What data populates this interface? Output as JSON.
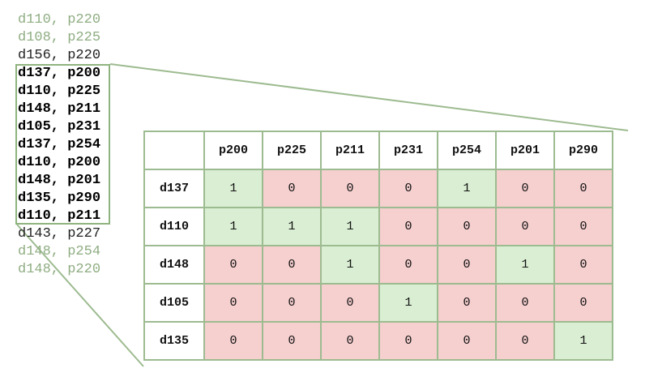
{
  "pairs_list": [
    {
      "text": "d110, p220",
      "style": "faded"
    },
    {
      "text": "d108, p225",
      "style": "faded"
    },
    {
      "text": "d156, p220",
      "style": "plain"
    },
    {
      "text": "d137, p200",
      "style": "highlight"
    },
    {
      "text": "d110, p225",
      "style": "highlight"
    },
    {
      "text": "d148, p211",
      "style": "highlight"
    },
    {
      "text": "d105, p231",
      "style": "highlight"
    },
    {
      "text": "d137, p254",
      "style": "highlight"
    },
    {
      "text": "d110, p200",
      "style": "highlight"
    },
    {
      "text": "d148, p201",
      "style": "highlight"
    },
    {
      "text": "d135, p290",
      "style": "highlight"
    },
    {
      "text": "d110, p211",
      "style": "highlight"
    },
    {
      "text": "d143, p227",
      "style": "plain"
    },
    {
      "text": "d148, p254",
      "style": "faded"
    },
    {
      "text": "d148, p220",
      "style": "faded"
    }
  ],
  "matrix": {
    "columns": [
      "p200",
      "p225",
      "p211",
      "p231",
      "p254",
      "p201",
      "p290"
    ],
    "rows": [
      {
        "label": "d137",
        "values": [
          "1",
          "0",
          "0",
          "0",
          "1",
          "0",
          "0"
        ]
      },
      {
        "label": "d110",
        "values": [
          "1",
          "1",
          "1",
          "0",
          "0",
          "0",
          "0"
        ]
      },
      {
        "label": "d148",
        "values": [
          "0",
          "0",
          "1",
          "0",
          "0",
          "1",
          "0"
        ]
      },
      {
        "label": "d105",
        "values": [
          "0",
          "0",
          "0",
          "1",
          "0",
          "0",
          "0"
        ]
      },
      {
        "label": "d135",
        "values": [
          "0",
          "0",
          "0",
          "0",
          "0",
          "0",
          "1"
        ]
      }
    ]
  },
  "colors": {
    "one_cell": "#d9eed2",
    "zero_cell": "#f6cfcf",
    "border": "#9dbb90",
    "connector": "#9dbb90",
    "faded_text": "#8fad82"
  }
}
